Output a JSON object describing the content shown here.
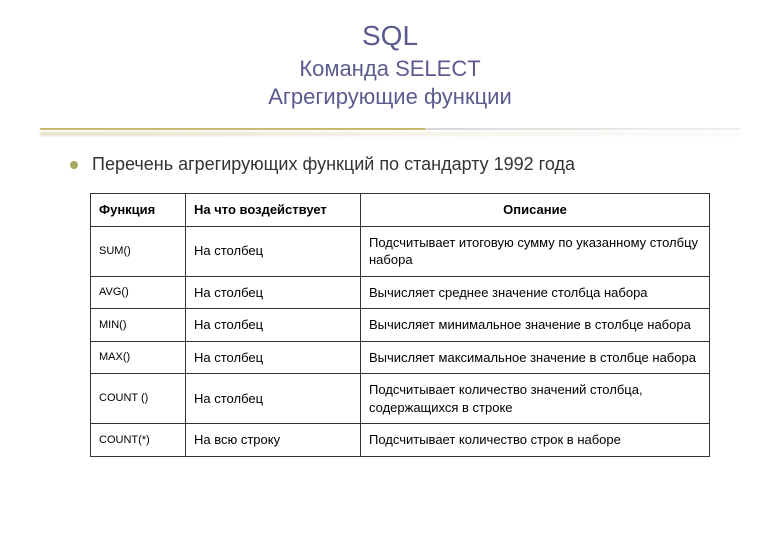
{
  "title": {
    "main": "SQL",
    "sub1": "Команда SELECT",
    "sub2": "Агрегирующие функции"
  },
  "bullet_text": "Перечень агрегирующих функций по стандарту 1992 года",
  "table": {
    "headers": {
      "col1": "Функция",
      "col2": "На что воздействует",
      "col3": "Описание"
    },
    "rows": [
      {
        "fn": "SUM()",
        "target": "На столбец",
        "desc": "Подсчитывает итоговую сумму по указанному столбцу набора"
      },
      {
        "fn": "AVG()",
        "target": "На столбец",
        "desc": "Вычисляет среднее значение столбца набора"
      },
      {
        "fn": "MIN()",
        "target": "На столбец",
        "desc": "Вычисляет минимальное значение в столбце набора"
      },
      {
        "fn": "MAX()",
        "target": "На столбец",
        "desc": "Вычисляет максимальное значение в столбце набора"
      },
      {
        "fn": "COUNT ()",
        "target": "На столбец",
        "desc": "Подсчитывает количество значений столбца, содержащихся в строке"
      },
      {
        "fn": "COUNT(*)",
        "target": "На всю строку",
        "desc": "Подсчитывает количество строк в наборе"
      }
    ]
  },
  "colors": {
    "title_color": "#5b5b8f",
    "bullet_color": "#a8a863",
    "text_color": "#333333",
    "border_color": "#333333",
    "background": "#ffffff"
  }
}
